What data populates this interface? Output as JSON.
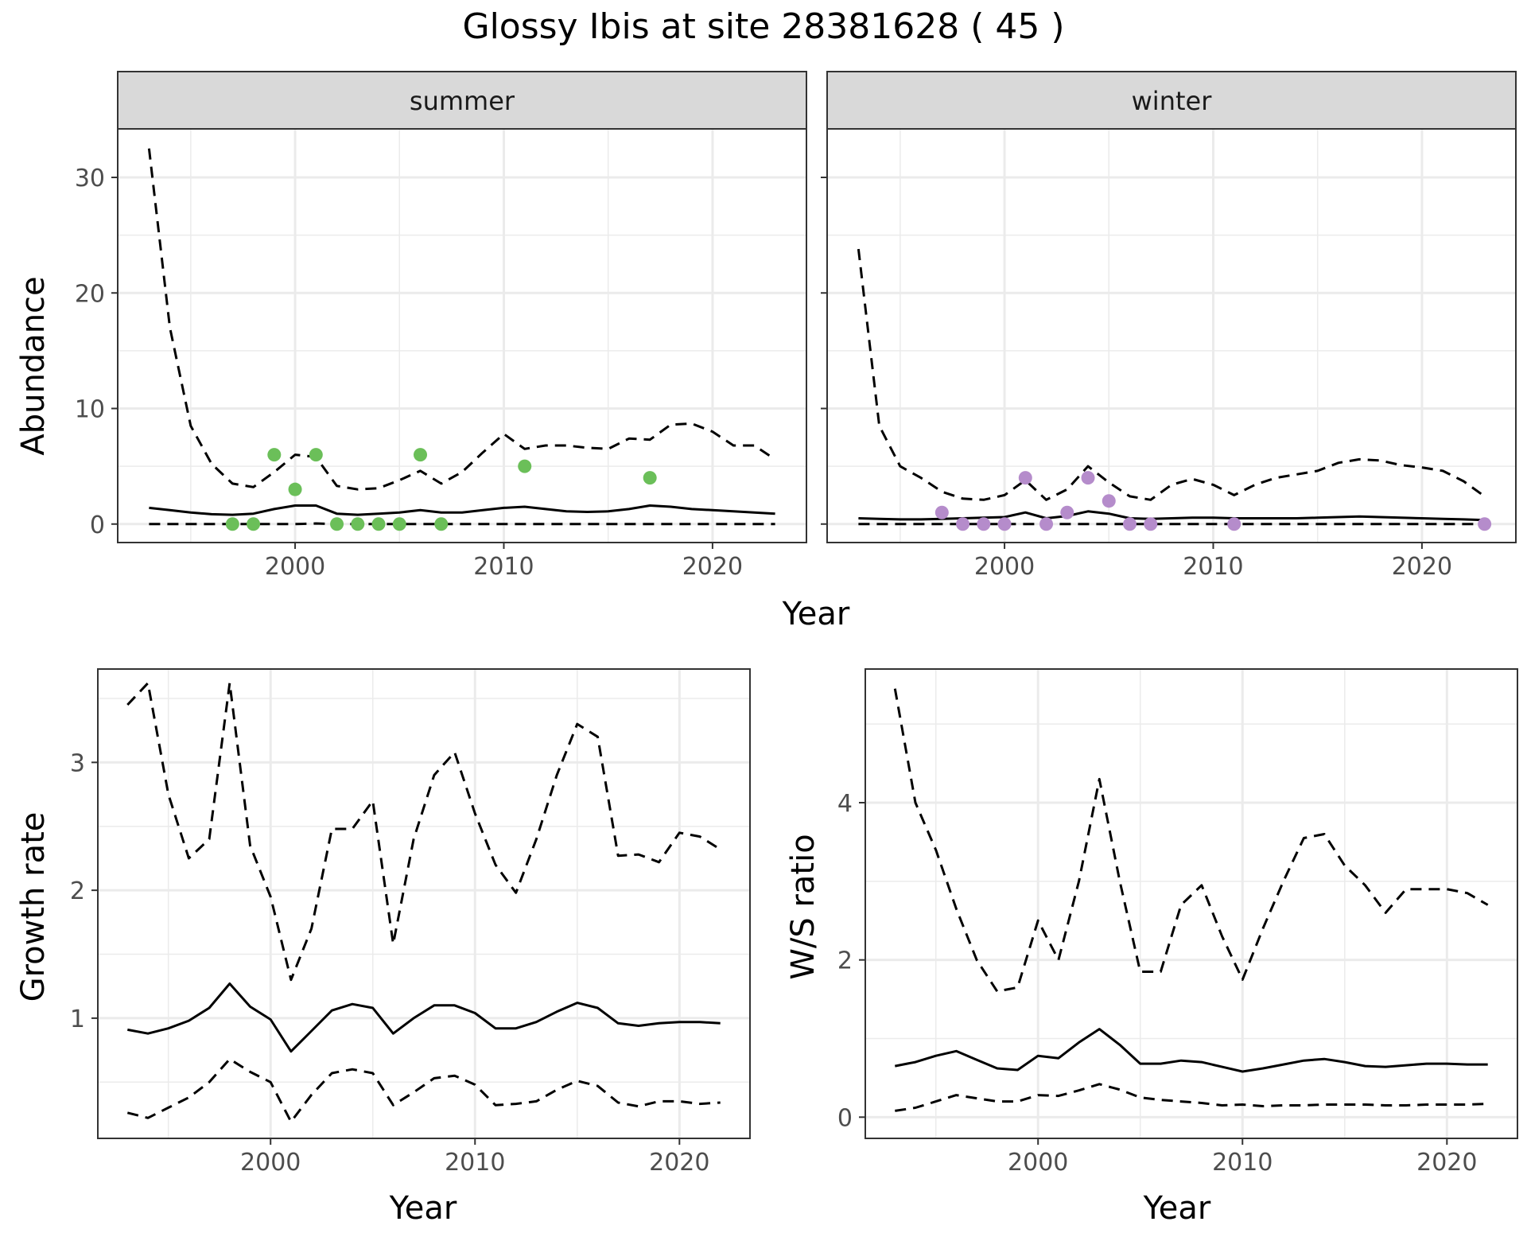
{
  "title": "Glossy Ibis at site 28381628 ( 45 )",
  "colors": {
    "summer_points": "#6BBF59",
    "winter_points": "#B58CCB",
    "lines": "#000000",
    "strip_bg": "#D9D9D9",
    "grid": "#EBEBEB"
  },
  "chart_data": [
    {
      "type": "line",
      "panel": "summer",
      "strip_label": "summer",
      "xlabel": "Year",
      "ylabel": "Abundance",
      "xlim": [
        1991.5,
        2024.5
      ],
      "ylim": [
        -1.6,
        34.2
      ],
      "x_ticks": [
        2000,
        2010,
        2020
      ],
      "x_tick_labels": [
        "2000",
        "2010",
        "2020"
      ],
      "y_ticks": [
        0,
        10,
        20,
        30
      ],
      "y_tick_labels": [
        "0",
        "10",
        "20",
        "30"
      ],
      "grid": true,
      "x": [
        1993,
        1994,
        1995,
        1996,
        1997,
        1998,
        1999,
        2000,
        2001,
        2002,
        2003,
        2004,
        2005,
        2006,
        2007,
        2008,
        2009,
        2010,
        2011,
        2012,
        2013,
        2014,
        2015,
        2016,
        2017,
        2018,
        2019,
        2020,
        2021,
        2022,
        2023
      ],
      "series": [
        {
          "role": "estimate",
          "style": "solid",
          "values": [
            1.4,
            1.2,
            1.0,
            0.85,
            0.8,
            0.9,
            1.3,
            1.6,
            1.6,
            0.9,
            0.8,
            0.9,
            1.0,
            1.2,
            1.0,
            1.0,
            1.2,
            1.4,
            1.5,
            1.3,
            1.1,
            1.05,
            1.1,
            1.3,
            1.6,
            1.5,
            1.3,
            1.2,
            1.1,
            1.0,
            0.9
          ]
        },
        {
          "role": "upper",
          "style": "dashed",
          "values": [
            32.5,
            17,
            8.5,
            5.2,
            3.5,
            3.2,
            4.5,
            6.0,
            5.8,
            3.3,
            3.0,
            3.1,
            3.8,
            4.6,
            3.5,
            4.5,
            6.2,
            7.8,
            6.5,
            6.8,
            6.8,
            6.6,
            6.5,
            7.4,
            7.3,
            8.6,
            8.7,
            8.0,
            6.8,
            6.8,
            5.6
          ]
        },
        {
          "role": "lower",
          "style": "dashed",
          "values": [
            0,
            0,
            0,
            0,
            0,
            0,
            0,
            0,
            0.05,
            0,
            0,
            0,
            0,
            0,
            0,
            0,
            0,
            0,
            0,
            0,
            0,
            0,
            0,
            0,
            0,
            0,
            0,
            0,
            0,
            0,
            0
          ]
        }
      ],
      "points": {
        "x": [
          1997,
          1998,
          1999,
          2000,
          2001,
          2002,
          2003,
          2004,
          2005,
          2006,
          2007,
          2011,
          2017
        ],
        "y": [
          0,
          0,
          6,
          3,
          6,
          0,
          0,
          0,
          0,
          6,
          0,
          5,
          4
        ]
      }
    },
    {
      "type": "line",
      "panel": "winter",
      "strip_label": "winter",
      "xlabel": "Year",
      "ylabel": "",
      "xlim": [
        1991.5,
        2024.5
      ],
      "ylim": [
        -1.6,
        34.2
      ],
      "x_ticks": [
        2000,
        2010,
        2020
      ],
      "x_tick_labels": [
        "2000",
        "2010",
        "2020"
      ],
      "y_ticks": [
        0,
        10,
        20,
        30
      ],
      "grid": true,
      "x": [
        1993,
        1994,
        1995,
        1996,
        1997,
        1998,
        1999,
        2000,
        2001,
        2002,
        2003,
        2004,
        2005,
        2006,
        2007,
        2008,
        2009,
        2010,
        2011,
        2012,
        2013,
        2014,
        2015,
        2016,
        2017,
        2018,
        2019,
        2020,
        2021,
        2022,
        2023
      ],
      "series": [
        {
          "role": "estimate",
          "style": "solid",
          "values": [
            0.5,
            0.45,
            0.4,
            0.4,
            0.45,
            0.5,
            0.55,
            0.6,
            1.0,
            0.5,
            0.7,
            1.1,
            0.9,
            0.5,
            0.45,
            0.5,
            0.55,
            0.55,
            0.5,
            0.5,
            0.5,
            0.5,
            0.55,
            0.6,
            0.65,
            0.6,
            0.55,
            0.5,
            0.45,
            0.4,
            0.35
          ]
        },
        {
          "role": "upper",
          "style": "dashed",
          "values": [
            23.8,
            8.5,
            5.0,
            4.0,
            2.8,
            2.2,
            2.1,
            2.5,
            3.8,
            2.1,
            3.0,
            5.0,
            3.6,
            2.4,
            2.1,
            3.4,
            3.9,
            3.4,
            2.5,
            3.4,
            4.0,
            4.3,
            4.6,
            5.3,
            5.6,
            5.5,
            5.1,
            4.9,
            4.6,
            3.7,
            2.4
          ]
        },
        {
          "role": "lower",
          "style": "dashed",
          "values": [
            0,
            0,
            0,
            0,
            0,
            0,
            0,
            0,
            0,
            0,
            0,
            0,
            0,
            0,
            0,
            0,
            0,
            0,
            0,
            0,
            0,
            0,
            0,
            0,
            0,
            0,
            0,
            0,
            0,
            0,
            0
          ]
        }
      ],
      "points": {
        "x": [
          1997,
          1998,
          1999,
          2000,
          2001,
          2002,
          2003,
          2004,
          2005,
          2006,
          2007,
          2011,
          2023
        ],
        "y": [
          1,
          0,
          0,
          0,
          4,
          0,
          1,
          4,
          2,
          0,
          0,
          0,
          0
        ]
      }
    },
    {
      "type": "line",
      "panel": "growth",
      "xlabel": "Year",
      "ylabel": "Growth rate",
      "xlim": [
        1991.55,
        2023.45
      ],
      "ylim": [
        0.06,
        3.73
      ],
      "x_ticks": [
        2000,
        2010,
        2020
      ],
      "x_tick_labels": [
        "2000",
        "2010",
        "2020"
      ],
      "y_ticks": [
        1,
        2,
        3
      ],
      "y_tick_labels": [
        "1",
        "2",
        "3"
      ],
      "grid": true,
      "x": [
        1993,
        1994,
        1995,
        1996,
        1997,
        1998,
        1999,
        2000,
        2001,
        2002,
        2003,
        2004,
        2005,
        2006,
        2007,
        2008,
        2009,
        2010,
        2011,
        2012,
        2013,
        2014,
        2015,
        2016,
        2017,
        2018,
        2019,
        2020,
        2021,
        2022
      ],
      "series": [
        {
          "role": "estimate",
          "style": "solid",
          "values": [
            0.91,
            0.88,
            0.92,
            0.98,
            1.08,
            1.27,
            1.09,
            0.99,
            0.74,
            0.9,
            1.06,
            1.11,
            1.08,
            0.88,
            1.0,
            1.1,
            1.1,
            1.04,
            0.92,
            0.92,
            0.97,
            1.05,
            1.12,
            1.08,
            0.96,
            0.94,
            0.96,
            0.97,
            0.97,
            0.96
          ]
        },
        {
          "role": "upper",
          "style": "dashed",
          "values": [
            3.45,
            3.62,
            2.75,
            2.25,
            2.4,
            3.62,
            2.35,
            1.95,
            1.3,
            1.7,
            2.48,
            2.48,
            2.7,
            1.58,
            2.4,
            2.9,
            3.08,
            2.6,
            2.2,
            1.98,
            2.4,
            2.9,
            3.3,
            3.2,
            2.27,
            2.28,
            2.22,
            2.45,
            2.42,
            2.32
          ]
        },
        {
          "role": "lower",
          "style": "dashed",
          "values": [
            0.26,
            0.22,
            0.3,
            0.38,
            0.5,
            0.68,
            0.58,
            0.5,
            0.19,
            0.4,
            0.57,
            0.6,
            0.57,
            0.32,
            0.42,
            0.53,
            0.55,
            0.48,
            0.32,
            0.33,
            0.35,
            0.44,
            0.51,
            0.47,
            0.34,
            0.31,
            0.35,
            0.35,
            0.33,
            0.34
          ]
        }
      ]
    },
    {
      "type": "line",
      "panel": "ratio",
      "xlabel": "Year",
      "ylabel": "W/S ratio",
      "xlim": [
        1991.55,
        2023.45
      ],
      "ylim": [
        -0.27,
        5.7
      ],
      "x_ticks": [
        2000,
        2010,
        2020
      ],
      "x_tick_labels": [
        "2000",
        "2010",
        "2020"
      ],
      "y_ticks": [
        0,
        2,
        4
      ],
      "y_tick_labels": [
        "0",
        "2",
        "4"
      ],
      "grid": true,
      "x": [
        1993,
        1994,
        1995,
        1996,
        1997,
        1998,
        1999,
        2000,
        2001,
        2002,
        2003,
        2004,
        2005,
        2006,
        2007,
        2008,
        2009,
        2010,
        2011,
        2012,
        2013,
        2014,
        2015,
        2016,
        2017,
        2018,
        2019,
        2020,
        2021,
        2022
      ],
      "series": [
        {
          "role": "estimate",
          "style": "solid",
          "values": [
            0.65,
            0.7,
            0.78,
            0.84,
            0.73,
            0.62,
            0.6,
            0.78,
            0.75,
            0.95,
            1.12,
            0.92,
            0.68,
            0.68,
            0.72,
            0.7,
            0.64,
            0.58,
            0.62,
            0.67,
            0.72,
            0.74,
            0.7,
            0.65,
            0.64,
            0.66,
            0.68,
            0.68,
            0.67,
            0.67
          ]
        },
        {
          "role": "upper",
          "style": "dashed",
          "values": [
            5.45,
            4.0,
            3.4,
            2.65,
            2.0,
            1.6,
            1.65,
            2.5,
            2.0,
            3.0,
            4.3,
            3.0,
            1.85,
            1.85,
            2.7,
            2.95,
            2.3,
            1.75,
            2.4,
            3.0,
            3.55,
            3.6,
            3.2,
            2.95,
            2.6,
            2.9,
            2.9,
            2.9,
            2.85,
            2.7
          ]
        },
        {
          "role": "lower",
          "style": "dashed",
          "values": [
            0.08,
            0.12,
            0.2,
            0.28,
            0.24,
            0.2,
            0.2,
            0.28,
            0.27,
            0.34,
            0.42,
            0.35,
            0.25,
            0.22,
            0.2,
            0.18,
            0.15,
            0.16,
            0.14,
            0.15,
            0.15,
            0.16,
            0.16,
            0.16,
            0.15,
            0.15,
            0.16,
            0.16,
            0.16,
            0.17
          ]
        }
      ]
    }
  ]
}
